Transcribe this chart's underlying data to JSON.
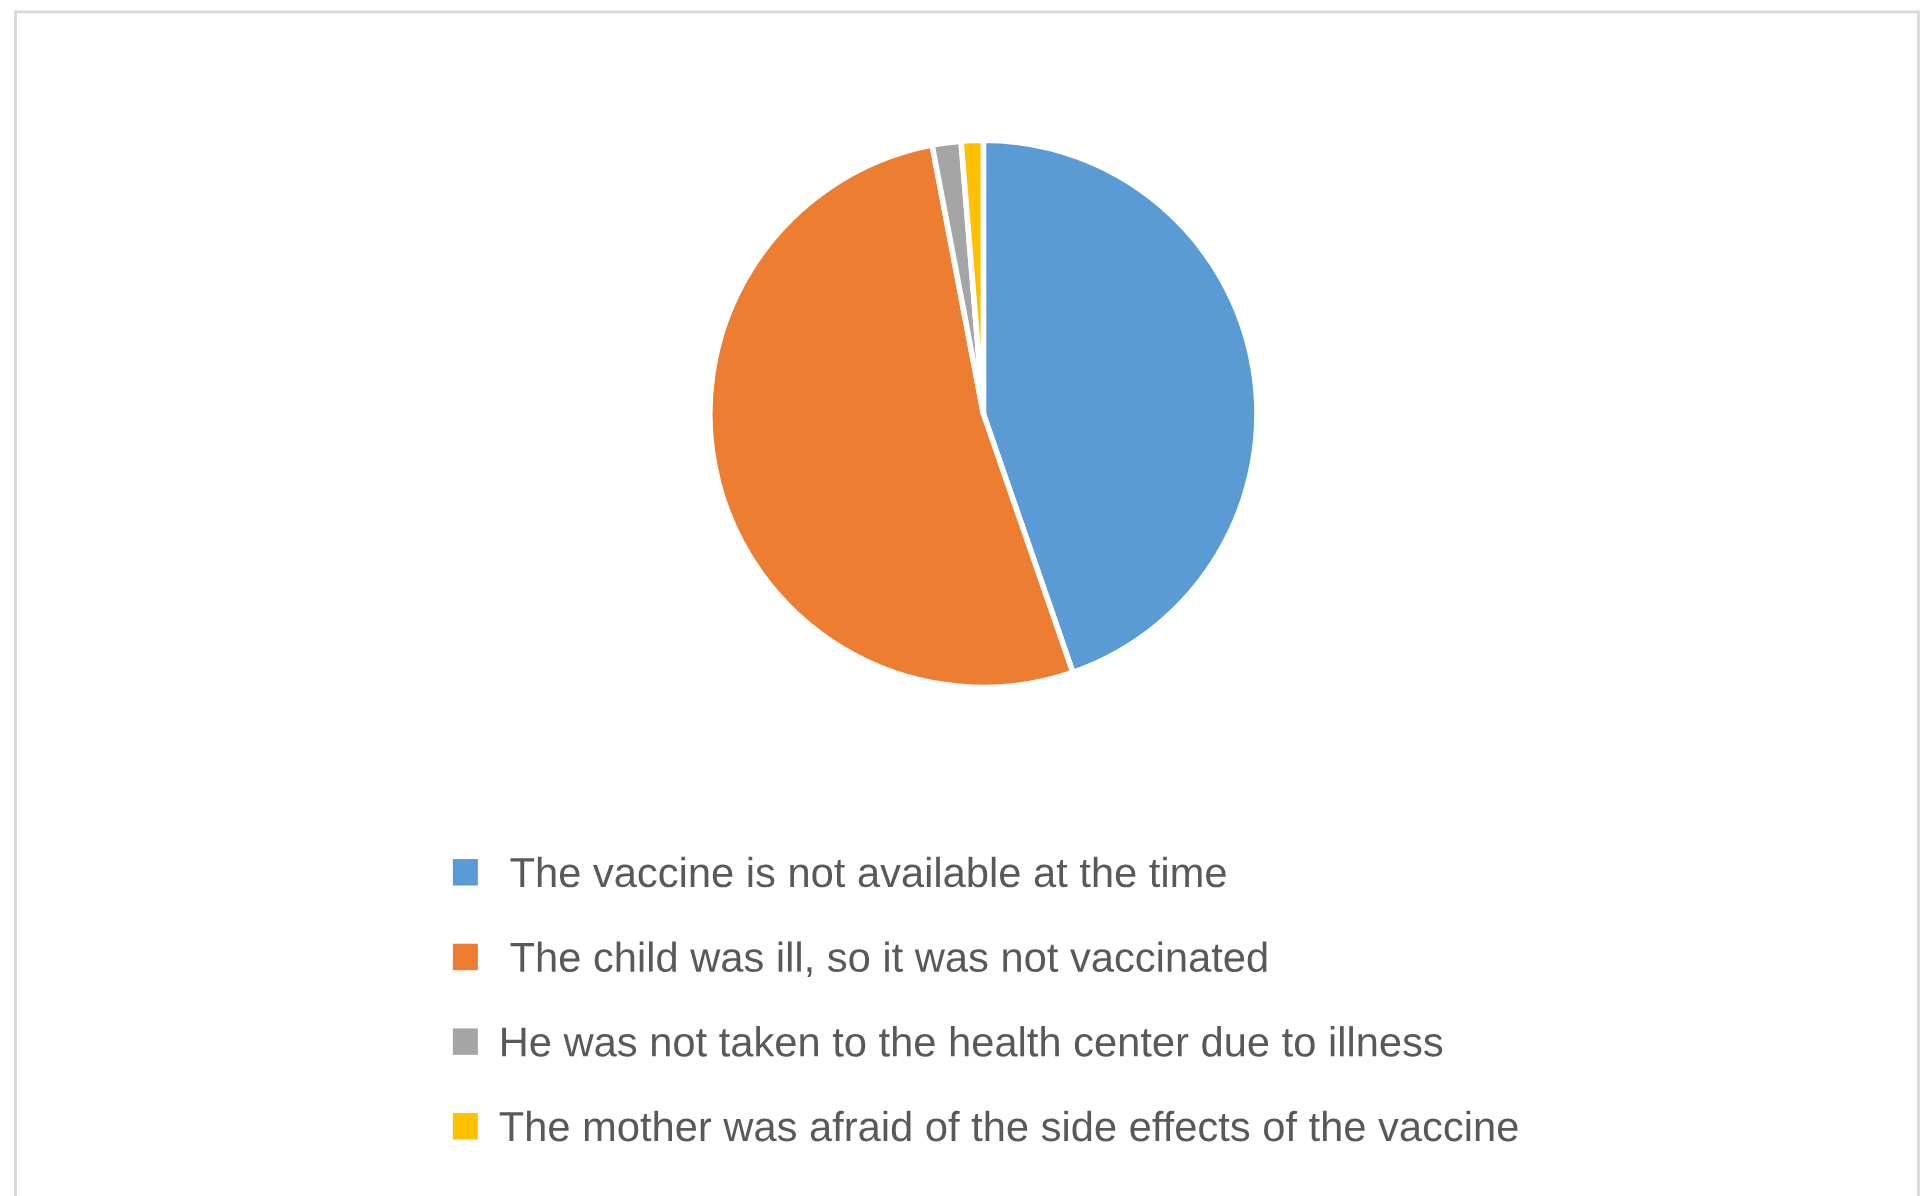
{
  "chart_data": {
    "type": "pie",
    "categories": [
      " The vaccine is not available at the time",
      " The child was ill, so it was not vaccinated",
      "He was not taken to the health center due to illness",
      "The mother was afraid of the side effects of the vaccine"
    ],
    "values": [
      44.7,
      52.3,
      1.7,
      1.3
    ],
    "colors": [
      "#5b9bd5",
      "#ed7d31",
      "#a5a5a5",
      "#ffc000"
    ],
    "legend": "bottom"
  }
}
